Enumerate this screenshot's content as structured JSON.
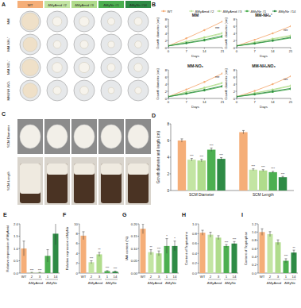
{
  "panel_labels": [
    "A",
    "B",
    "C",
    "D",
    "E",
    "F",
    "G",
    "H",
    "I"
  ],
  "panel_a": {
    "columns": [
      "WT",
      "ΔMyAmid #2",
      "ΔMyAmid #3",
      "ΔMyNir #1",
      "ΔMyNir #14"
    ],
    "colors": [
      "#f5ae78",
      "#c3e5a3",
      "#b0dc8c",
      "#4caf50",
      "#2e8b45"
    ],
    "rows": [
      "MM",
      "MM-NH₄⁺",
      "MM-NO₃⁻",
      "MM-NH₄NO₃"
    ]
  },
  "panel_c": {
    "rows": [
      "SCM Diameter",
      "SCM Length"
    ]
  },
  "chart_data": [
    {
      "type": "line",
      "title": "MM",
      "x_label": "Days",
      "y_label": "Growth diameter (cm)",
      "x": [
        0,
        7,
        14,
        21
      ],
      "xlim": [
        0,
        21
      ],
      "xticks": [
        0,
        7,
        14,
        21
      ],
      "ylim": [
        0,
        8
      ],
      "yticks": [
        0,
        2,
        4,
        6,
        8
      ],
      "marker": "circle",
      "legend": "top",
      "series": [
        {
          "name": "WT",
          "color": "#f5ae78",
          "values": [
            0.5,
            2.6,
            4.9,
            7.3
          ]
        },
        {
          "name": "ΔMyAmid #2",
          "color": "#c3e5a3",
          "values": [
            0.5,
            1.6,
            2.7,
            3.9
          ]
        },
        {
          "name": "ΔMyAmid #3",
          "color": "#b0dc8c",
          "values": [
            0.5,
            1.7,
            2.9,
            4.1
          ]
        },
        {
          "name": "ΔMyNir #1",
          "color": "#4caf50",
          "values": [
            0.5,
            1.2,
            2.0,
            3.0
          ]
        },
        {
          "name": "ΔMyNir #14",
          "color": "#2e8b45",
          "values": [
            0.5,
            1.3,
            2.2,
            3.3
          ]
        }
      ],
      "annotations": [
        {
          "text": "***",
          "x": 19,
          "y": 5.0
        }
      ]
    },
    {
      "type": "line",
      "title": "MM-NH₄⁺",
      "x_label": "Days",
      "y_label": "Growth diameter (cm)",
      "x": [
        0,
        7,
        14,
        21
      ],
      "xlim": [
        0,
        21
      ],
      "xticks": [
        0,
        7,
        14,
        21
      ],
      "ylim": [
        0,
        8
      ],
      "yticks": [
        0,
        2,
        4,
        6,
        8
      ],
      "marker": "circle",
      "series": [
        {
          "color": "#f5ae78",
          "values": [
            0.5,
            2.2,
            4.0,
            6.0
          ]
        },
        {
          "color": "#c3e5a3",
          "values": [
            0.5,
            1.4,
            2.3,
            3.2
          ]
        },
        {
          "color": "#b0dc8c",
          "values": [
            0.5,
            1.5,
            2.5,
            3.4
          ]
        },
        {
          "color": "#4caf50",
          "values": [
            0.5,
            1.1,
            1.9,
            2.7
          ]
        },
        {
          "color": "#2e8b45",
          "values": [
            0.5,
            1.2,
            2.0,
            2.9
          ]
        }
      ],
      "annotations": [
        {
          "text": "***",
          "x": 19,
          "y": 4.3
        }
      ]
    },
    {
      "type": "line",
      "title": "MM-NO₃",
      "x_label": "Days",
      "y_label": "Growth diameter (cm)",
      "x": [
        0,
        7,
        14,
        21
      ],
      "xlim": [
        0,
        21
      ],
      "xticks": [
        0,
        7,
        14,
        21
      ],
      "ylim": [
        0,
        8
      ],
      "yticks": [
        0,
        2,
        4,
        6,
        8
      ],
      "marker": "circle",
      "series": [
        {
          "color": "#f5ae78",
          "values": [
            0.5,
            2.5,
            4.6,
            7.0
          ]
        },
        {
          "color": "#c3e5a3",
          "values": [
            0.5,
            1.7,
            2.9,
            4.2
          ]
        },
        {
          "color": "#b0dc8c",
          "values": [
            0.5,
            1.8,
            3.0,
            4.4
          ]
        },
        {
          "color": "#4caf50",
          "values": [
            0.5,
            1.3,
            2.2,
            3.3
          ]
        },
        {
          "color": "#2e8b45",
          "values": [
            0.5,
            1.4,
            2.4,
            3.5
          ]
        }
      ],
      "annotations": [
        {
          "text": "***",
          "x": 19,
          "y": 5.4
        }
      ]
    },
    {
      "type": "line",
      "title": "MM-NH₄NO₃",
      "x_label": "Days",
      "y_label": "Growth diameter (cm)",
      "x": [
        0,
        7,
        14,
        21
      ],
      "xlim": [
        0,
        21
      ],
      "xticks": [
        0,
        7,
        14,
        21
      ],
      "ylim": [
        0,
        8
      ],
      "yticks": [
        0,
        2,
        4,
        6,
        8
      ],
      "marker": "circle",
      "series": [
        {
          "color": "#f5ae78",
          "values": [
            0.5,
            2.1,
            4.0,
            6.2
          ]
        },
        {
          "color": "#c3e5a3",
          "values": [
            0.5,
            1.4,
            2.4,
            3.4
          ]
        },
        {
          "color": "#b0dc8c",
          "values": [
            0.5,
            1.5,
            2.5,
            3.6
          ]
        },
        {
          "color": "#4caf50",
          "values": [
            0.5,
            1.1,
            1.8,
            2.6
          ]
        },
        {
          "color": "#2e8b45",
          "values": [
            0.5,
            1.2,
            2.0,
            2.8
          ]
        }
      ],
      "annotations": [
        {
          "text": "***",
          "x": 19,
          "y": 4.6
        }
      ]
    },
    {
      "type": "bar",
      "y_label": "Growth diameter and length (cm)",
      "categories": [
        "SCM Diameter",
        "SCM Length"
      ],
      "ylim": [
        0,
        8
      ],
      "yticks": [
        0,
        2,
        4,
        6,
        8
      ],
      "series": [
        {
          "color": "#f5ae78",
          "values": [
            6.0,
            7.0
          ],
          "errors": [
            0.2,
            0.2
          ],
          "significance": [
            null,
            null
          ]
        },
        {
          "color": "#c3e5a3",
          "values": [
            3.7,
            2.5
          ],
          "errors": [
            0.15,
            0.1
          ],
          "significance": [
            "***",
            "***"
          ]
        },
        {
          "color": "#b0dc8c",
          "values": [
            3.6,
            2.4
          ],
          "errors": [
            0.15,
            0.1
          ],
          "significance": [
            "***",
            "***"
          ]
        },
        {
          "color": "#4caf50",
          "values": [
            4.9,
            2.2
          ],
          "errors": [
            0.2,
            0.1
          ],
          "significance": [
            "***",
            "***"
          ]
        },
        {
          "color": "#2e8b45",
          "values": [
            3.8,
            1.6
          ],
          "errors": [
            0.15,
            0.1
          ],
          "significance": [
            "***",
            "***"
          ]
        }
      ]
    },
    {
      "type": "bar",
      "y_label": "Relative expression of MyAmid",
      "categories": [
        "WT",
        "2",
        "3",
        "1",
        "14"
      ],
      "groups": [
        {
          "name": "ΔMyAmid",
          "categories": [
            "2",
            "3"
          ]
        },
        {
          "name": "ΔMyNir",
          "categories": [
            "1",
            "14"
          ]
        }
      ],
      "colors": [
        "#f5ae78",
        "#c3e5a3",
        "#b0dc8c",
        "#4caf50",
        "#2e8b45"
      ],
      "values": [
        1.0,
        0.02,
        0.02,
        0.7,
        1.6
      ],
      "errors": [
        0.3,
        0.01,
        0.01,
        0.25,
        0.45
      ],
      "significance": [
        null,
        "***",
        "***",
        null,
        null
      ],
      "ylim": [
        0,
        2
      ],
      "yticks": [
        {
          "value": 0,
          "label": "0.0"
        },
        0.5,
        {
          "value": 1,
          "label": "1.0"
        },
        1.5,
        {
          "value": 2,
          "label": "2.0"
        }
      ]
    },
    {
      "type": "bar",
      "y_label": "Relative expression of MyNir",
      "categories": [
        "WT",
        "2",
        "3",
        "1",
        "14"
      ],
      "groups": [
        {
          "name": "ΔMyAmid",
          "categories": [
            "2",
            "3"
          ]
        },
        {
          "name": "ΔMyNir",
          "categories": [
            "1",
            "14"
          ]
        }
      ],
      "colors": [
        "#f5ae78",
        "#c3e5a3",
        "#b0dc8c",
        "#4caf50",
        "#2e8b45"
      ],
      "values": [
        7.6,
        2.2,
        3.8,
        0.4,
        0.3
      ],
      "errors": [
        0.8,
        0.3,
        0.4,
        0.1,
        0.1
      ],
      "significance": [
        null,
        "***",
        "**",
        "***",
        "***"
      ],
      "ylim": [
        0,
        10
      ],
      "yticks": [
        0,
        2,
        4,
        6,
        8,
        10
      ]
    },
    {
      "type": "bar",
      "y_label": "IAA content (%)",
      "categories": [
        "WT",
        "2",
        "3",
        "1",
        "14"
      ],
      "groups": [
        {
          "name": "ΔMyAmid",
          "categories": [
            "2",
            "3"
          ]
        },
        {
          "name": "ΔMyNir",
          "categories": [
            "1",
            "14"
          ]
        }
      ],
      "colors": [
        "#f5ae78",
        "#c3e5a3",
        "#b0dc8c",
        "#4caf50",
        "#2e8b45"
      ],
      "values": [
        0.18,
        0.085,
        0.08,
        0.11,
        0.11
      ],
      "errors": [
        0.02,
        0.01,
        0.01,
        0.03,
        0.02
      ],
      "significance": [
        null,
        "**",
        "***",
        "*",
        "*"
      ],
      "ylim": [
        0,
        0.2
      ],
      "yticks": [
        {
          "value": 0,
          "label": "0.00"
        },
        0.05,
        {
          "value": 0.1,
          "label": "0.10"
        },
        0.15,
        {
          "value": 0.2,
          "label": "0.20"
        }
      ]
    },
    {
      "type": "bar",
      "y_label": "Content of Tryptamine",
      "categories": [
        "WT",
        "2",
        "3",
        "1",
        "14"
      ],
      "groups": [
        {
          "name": "ΔMyAmid",
          "categories": [
            "2",
            "3"
          ]
        },
        {
          "name": "ΔMyNir",
          "categories": [
            "1",
            "14"
          ]
        }
      ],
      "colors": [
        "#f5ae78",
        "#c3e5a3",
        "#b0dc8c",
        "#4caf50",
        "#2e8b45"
      ],
      "values": [
        0.82,
        0.78,
        0.72,
        0.55,
        0.6
      ],
      "errors": [
        0.05,
        0.05,
        0.04,
        0.03,
        0.04
      ],
      "significance": [
        null,
        null,
        null,
        "***",
        "***"
      ],
      "ylim": [
        0,
        1
      ],
      "yticks": [
        {
          "value": 0,
          "label": "0.0"
        },
        0.2,
        0.4,
        0.6,
        0.8,
        {
          "value": 1,
          "label": "1.0"
        }
      ]
    },
    {
      "type": "bar",
      "y_label": "Content of Tryptophan",
      "categories": [
        "WT",
        "2",
        "3",
        "1",
        "14"
      ],
      "groups": [
        {
          "name": "ΔMyAmid",
          "categories": [
            "2",
            "3"
          ]
        },
        {
          "name": "ΔMyNir",
          "categories": [
            "1",
            "14"
          ]
        }
      ],
      "colors": [
        "#f5ae78",
        "#c3e5a3",
        "#b0dc8c",
        "#4caf50",
        "#2e8b45"
      ],
      "values": [
        1.0,
        0.95,
        0.75,
        0.3,
        0.5
      ],
      "errors": [
        0.08,
        0.06,
        0.06,
        0.05,
        0.06
      ],
      "significance": [
        null,
        null,
        null,
        "***",
        "**"
      ],
      "ylim": [
        0,
        1.2
      ],
      "yticks": [
        {
          "value": 0,
          "label": "0.0"
        },
        0.2,
        0.4,
        0.6,
        0.8,
        {
          "value": 1,
          "label": "1.0"
        },
        1.2
      ]
    }
  ]
}
